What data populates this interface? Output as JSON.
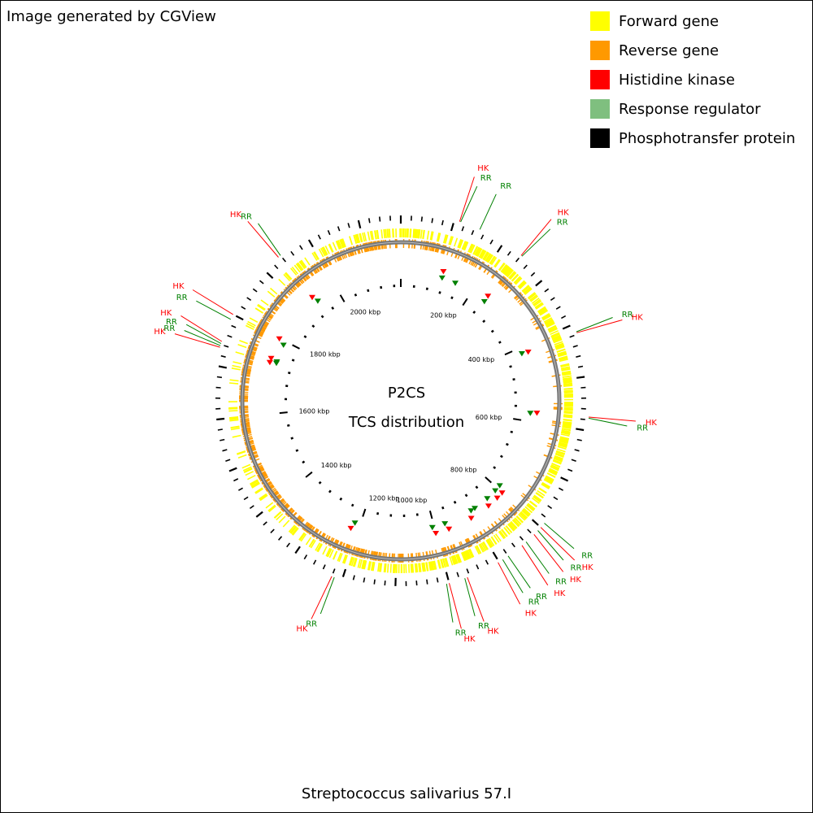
{
  "credit": "Image generated by CGView",
  "center": {
    "line1": "P2CS",
    "line2": "TCS distribution"
  },
  "footer": "Streptococcus salivarius 57.I",
  "colors": {
    "forward": "#ffff00",
    "reverse": "#ff9900",
    "histidine_kinase": "#ff0000",
    "response_regulator": "#7fbf7f",
    "phosphotransfer": "#000000",
    "rr_line": "#008000",
    "hk_line": "#ff0000",
    "backbone": "#777777"
  },
  "legend": [
    {
      "label": "Forward gene",
      "color": "#ffff00",
      "icon": "yellow-square-icon"
    },
    {
      "label": "Reverse gene",
      "color": "#ff9900",
      "icon": "orange-square-icon"
    },
    {
      "label": "Histidine kinase",
      "color": "#ff0000",
      "icon": "red-square-icon"
    },
    {
      "label": "Response regulator",
      "color": "#7fbf7f",
      "icon": "green-square-icon"
    },
    {
      "label": "Phosphotransfer protein",
      "color": "#000000",
      "icon": "black-square-icon"
    }
  ],
  "genome": {
    "length_kbp": 2180,
    "ruler_labels": [
      {
        "kbp": 200,
        "text": "200 kbp"
      },
      {
        "kbp": 400,
        "text": "400 kbp"
      },
      {
        "kbp": 600,
        "text": "600 kbp"
      },
      {
        "kbp": 800,
        "text": "800 kbp"
      },
      {
        "kbp": 1000,
        "text": "1000 kbp"
      },
      {
        "kbp": 1200,
        "text": "1200 kbp"
      },
      {
        "kbp": 1400,
        "text": "1400 kbp"
      },
      {
        "kbp": 1600,
        "text": "1600 kbp"
      },
      {
        "kbp": 1800,
        "text": "1800 kbp"
      },
      {
        "kbp": 2000,
        "text": "2000 kbp"
      }
    ]
  },
  "features": [
    {
      "type": "HK",
      "label": "HK",
      "kbp": 110
    },
    {
      "type": "RR",
      "label": "RR",
      "kbp": 112
    },
    {
      "type": "RR",
      "label": "RR",
      "kbp": 150
    },
    {
      "type": "HK",
      "label": "HK",
      "kbp": 240
    },
    {
      "type": "RR",
      "label": "RR",
      "kbp": 242
    },
    {
      "type": "RR",
      "label": "RR",
      "kbp": 415
    },
    {
      "type": "HK",
      "label": "HK",
      "kbp": 417
    },
    {
      "type": "HK",
      "label": "HK",
      "kbp": 575
    },
    {
      "type": "RR",
      "label": "RR",
      "kbp": 577
    },
    {
      "type": "RR",
      "label": "RR",
      "kbp": 790
    },
    {
      "type": "HK",
      "label": "HK",
      "kbp": 800
    },
    {
      "type": "RR",
      "label": "RR",
      "kbp": 808
    },
    {
      "type": "HK",
      "label": "HK",
      "kbp": 818
    },
    {
      "type": "RR",
      "label": "RR",
      "kbp": 838
    },
    {
      "type": "HK",
      "label": "HK",
      "kbp": 848
    },
    {
      "type": "RR",
      "label": "RR",
      "kbp": 880
    },
    {
      "type": "RR",
      "label": "RR",
      "kbp": 892
    },
    {
      "type": "HK",
      "label": "HK",
      "kbp": 902
    },
    {
      "type": "HK",
      "label": "HK",
      "kbp": 965
    },
    {
      "type": "RR",
      "label": "RR",
      "kbp": 970
    },
    {
      "type": "HK",
      "label": "HK",
      "kbp": 1000
    },
    {
      "type": "RR",
      "label": "RR",
      "kbp": 1005
    },
    {
      "type": "RR",
      "label": "RR",
      "kbp": 1215
    },
    {
      "type": "HK",
      "label": "HK",
      "kbp": 1220
    },
    {
      "type": "HK",
      "label": "HK",
      "kbp": 1735
    },
    {
      "type": "RR",
      "label": "RR",
      "kbp": 1738
    },
    {
      "type": "RR",
      "label": "RR",
      "kbp": 1742
    },
    {
      "type": "HK",
      "label": "HK",
      "kbp": 1746
    },
    {
      "type": "RR",
      "label": "RR",
      "kbp": 1790
    },
    {
      "type": "HK",
      "label": "HK",
      "kbp": 1800
    },
    {
      "type": "HK",
      "label": "HK",
      "kbp": 1935
    },
    {
      "type": "RR",
      "label": "RR",
      "kbp": 1940
    }
  ]
}
